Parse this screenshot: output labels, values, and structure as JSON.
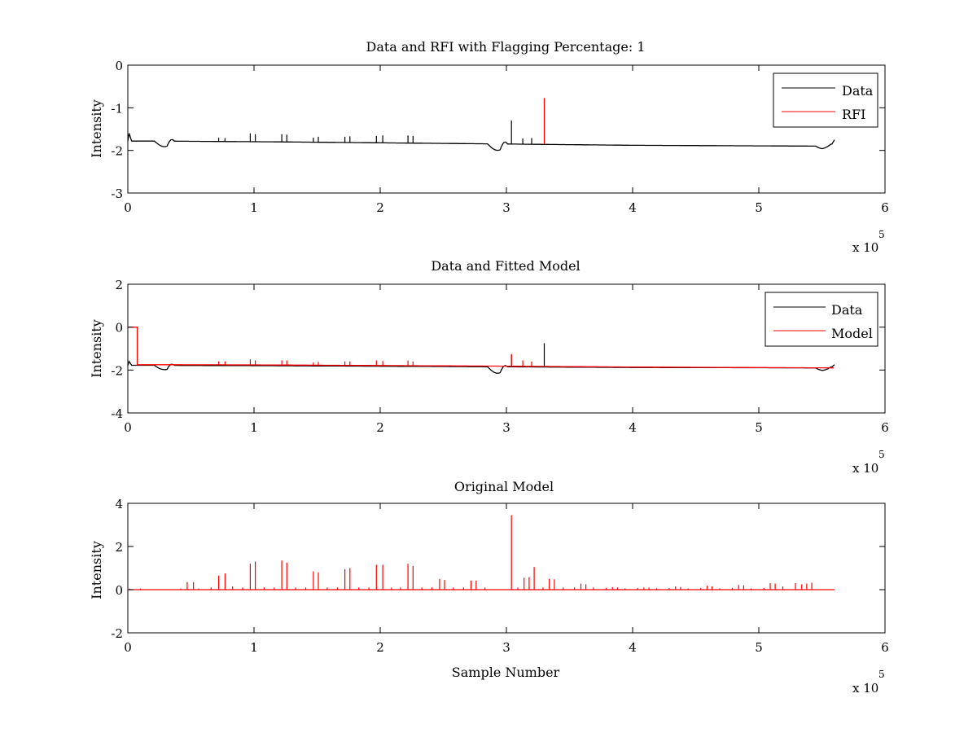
{
  "figure": {
    "background": "#ffffff",
    "colors": {
      "data": "#000000",
      "rfi": "#ff0000",
      "model": "#ff0000"
    }
  },
  "chart_data": [
    {
      "type": "line",
      "title": "Data and RFI with Flagging Percentage: 1",
      "xlabel": "",
      "ylabel": "Intensity",
      "xlim": [
        0,
        600000
      ],
      "ylim": [
        -3,
        0
      ],
      "xticks": [
        0,
        1,
        2,
        3,
        4,
        5,
        6
      ],
      "yticks": [
        -3,
        -2,
        -1,
        0
      ],
      "x_exponent_label": "x 10",
      "x_exponent": "5",
      "grid": false,
      "legend": {
        "position": "top-right",
        "entries": [
          "Data",
          "RFI"
        ]
      },
      "series": [
        {
          "name": "Data",
          "color": "#000000",
          "baseline": {
            "x": [
              0,
              1000,
              3000,
              20000,
              120000,
              300000,
              400000,
              550000,
              558000,
              560000
            ],
            "y": [
              -1.78,
              -1.6,
              -1.78,
              -1.78,
              -1.8,
              -1.85,
              -1.88,
              -1.9,
              -1.85,
              -1.75
            ]
          },
          "dips": [
            {
              "x": 29000,
              "width": 8000,
              "depth": 0.13
            },
            {
              "x": 293000,
              "width": 8000,
              "depth": 0.15
            },
            {
              "x": 551000,
              "width": 6000,
              "depth": 0.06
            }
          ],
          "bumps": [
            {
              "x": 34000,
              "width": 3000,
              "height": 0.1
            },
            {
              "x": 298000,
              "width": 3000,
              "height": 0.12
            }
          ],
          "spikes": [
            {
              "x": 97000,
              "y": -1.6
            },
            {
              "x": 101000,
              "y": -1.62
            },
            {
              "x": 122000,
              "y": -1.62
            },
            {
              "x": 126000,
              "y": -1.63
            },
            {
              "x": 147000,
              "y": -1.7
            },
            {
              "x": 151000,
              "y": -1.68
            },
            {
              "x": 172000,
              "y": -1.68
            },
            {
              "x": 176000,
              "y": -1.67
            },
            {
              "x": 197000,
              "y": -1.66
            },
            {
              "x": 202000,
              "y": -1.65
            },
            {
              "x": 222000,
              "y": -1.65
            },
            {
              "x": 226000,
              "y": -1.66
            },
            {
              "x": 72000,
              "y": -1.7
            },
            {
              "x": 77000,
              "y": -1.71
            },
            {
              "x": 304000,
              "y": -1.3
            },
            {
              "x": 313000,
              "y": -1.72
            },
            {
              "x": 320000,
              "y": -1.71
            }
          ]
        },
        {
          "name": "RFI",
          "color": "#ff0000",
          "spikes": [
            {
              "x": 330000,
              "y": -0.77
            }
          ]
        }
      ]
    },
    {
      "type": "line",
      "title": "Data and Fitted Model",
      "xlabel": "",
      "ylabel": "Intensity",
      "xlim": [
        0,
        600000
      ],
      "ylim": [
        -4,
        2
      ],
      "xticks": [
        0,
        1,
        2,
        3,
        4,
        5,
        6
      ],
      "yticks": [
        -4,
        -2,
        0,
        2
      ],
      "x_exponent_label": "x 10",
      "x_exponent": "5",
      "grid": false,
      "legend": {
        "position": "top-right",
        "entries": [
          "Data",
          "Model"
        ]
      },
      "series": [
        {
          "name": "Data",
          "color": "#000000",
          "baseline": {
            "x": [
              0,
              1000,
              3000,
              20000,
              120000,
              300000,
              400000,
              550000,
              558000,
              560000
            ],
            "y": [
              -1.78,
              -1.6,
              -1.78,
              -1.78,
              -1.8,
              -1.85,
              -1.88,
              -1.9,
              -1.85,
              -1.75
            ]
          },
          "dips": [
            {
              "x": 29000,
              "width": 8000,
              "depth": 0.2
            },
            {
              "x": 293000,
              "width": 8000,
              "depth": 0.3
            },
            {
              "x": 551000,
              "width": 6000,
              "depth": 0.12
            }
          ],
          "bumps": [
            {
              "x": 34000,
              "width": 3000,
              "height": 0.15
            },
            {
              "x": 298000,
              "width": 3000,
              "height": 0.2
            }
          ],
          "spikes": [
            {
              "x": 330000,
              "y": -0.75
            },
            {
              "x": 304000,
              "y": -1.3
            }
          ]
        },
        {
          "name": "Model",
          "color": "#ff0000",
          "step": {
            "x_end": 7500,
            "y_high": 0.0
          },
          "baseline": {
            "x": [
              7500,
              100000,
              300000,
              400000,
              560000
            ],
            "y": [
              -1.75,
              -1.76,
              -1.82,
              -1.86,
              -1.9
            ]
          },
          "spikes": [
            {
              "x": 72000,
              "y": -1.6
            },
            {
              "x": 77000,
              "y": -1.6
            },
            {
              "x": 97000,
              "y": -1.5
            },
            {
              "x": 101000,
              "y": -1.55
            },
            {
              "x": 122000,
              "y": -1.55
            },
            {
              "x": 126000,
              "y": -1.56
            },
            {
              "x": 147000,
              "y": -1.65
            },
            {
              "x": 151000,
              "y": -1.62
            },
            {
              "x": 172000,
              "y": -1.6
            },
            {
              "x": 176000,
              "y": -1.6
            },
            {
              "x": 197000,
              "y": -1.55
            },
            {
              "x": 202000,
              "y": -1.58
            },
            {
              "x": 222000,
              "y": -1.55
            },
            {
              "x": 226000,
              "y": -1.6
            },
            {
              "x": 304000,
              "y": -1.25
            },
            {
              "x": 313000,
              "y": -1.55
            },
            {
              "x": 320000,
              "y": -1.6
            }
          ]
        }
      ]
    },
    {
      "type": "line",
      "title": "Original Model",
      "xlabel": "Sample Number",
      "ylabel": "Intensity",
      "xlim": [
        0,
        600000
      ],
      "ylim": [
        -2,
        4
      ],
      "xticks": [
        0,
        1,
        2,
        3,
        4,
        5,
        6
      ],
      "yticks": [
        -2,
        0,
        2,
        4
      ],
      "x_exponent_label": "x 10",
      "x_exponent": "5",
      "grid": false,
      "series": [
        {
          "name": "",
          "color": "#ff0000",
          "baseline": {
            "x": [
              1000,
              560000
            ],
            "y": [
              0,
              0
            ]
          },
          "spikes": [
            {
              "x": 1500,
              "y": 0.05
            },
            {
              "x": 10000,
              "y": 0.05
            },
            {
              "x": 42000,
              "y": 0.05
            },
            {
              "x": 47000,
              "y": 0.35
            },
            {
              "x": 52000,
              "y": 0.35
            },
            {
              "x": 56000,
              "y": 0.05
            },
            {
              "x": 66000,
              "y": 0.1
            },
            {
              "x": 72000,
              "y": 0.65
            },
            {
              "x": 77000,
              "y": 0.75
            },
            {
              "x": 83000,
              "y": 0.15
            },
            {
              "x": 91000,
              "y": 0.1
            },
            {
              "x": 97000,
              "y": 1.2
            },
            {
              "x": 101000,
              "y": 1.3
            },
            {
              "x": 108000,
              "y": 0.1
            },
            {
              "x": 116000,
              "y": 0.1
            },
            {
              "x": 122000,
              "y": 1.35
            },
            {
              "x": 126000,
              "y": 1.25
            },
            {
              "x": 133000,
              "y": 0.1
            },
            {
              "x": 141000,
              "y": 0.1
            },
            {
              "x": 147000,
              "y": 0.85
            },
            {
              "x": 151000,
              "y": 0.8
            },
            {
              "x": 158000,
              "y": 0.1
            },
            {
              "x": 166000,
              "y": 0.1
            },
            {
              "x": 172000,
              "y": 0.95
            },
            {
              "x": 176000,
              "y": 1.0
            },
            {
              "x": 183000,
              "y": 0.1
            },
            {
              "x": 191000,
              "y": 0.1
            },
            {
              "x": 197000,
              "y": 1.15
            },
            {
              "x": 202000,
              "y": 1.15
            },
            {
              "x": 209000,
              "y": 0.1
            },
            {
              "x": 216000,
              "y": 0.1
            },
            {
              "x": 222000,
              "y": 1.2
            },
            {
              "x": 226000,
              "y": 1.1
            },
            {
              "x": 233000,
              "y": 0.1
            },
            {
              "x": 241000,
              "y": 0.1
            },
            {
              "x": 247000,
              "y": 0.5
            },
            {
              "x": 251000,
              "y": 0.45
            },
            {
              "x": 258000,
              "y": 0.1
            },
            {
              "x": 266000,
              "y": 0.1
            },
            {
              "x": 272000,
              "y": 0.42
            },
            {
              "x": 276000,
              "y": 0.42
            },
            {
              "x": 283000,
              "y": 0.1
            },
            {
              "x": 304000,
              "y": 3.45
            },
            {
              "x": 309000,
              "y": 0.1
            },
            {
              "x": 314000,
              "y": 0.55
            },
            {
              "x": 318000,
              "y": 0.58
            },
            {
              "x": 322000,
              "y": 1.05
            },
            {
              "x": 329000,
              "y": 0.1
            },
            {
              "x": 334000,
              "y": 0.5
            },
            {
              "x": 338000,
              "y": 0.48
            },
            {
              "x": 345000,
              "y": 0.1
            },
            {
              "x": 354000,
              "y": 0.1
            },
            {
              "x": 359000,
              "y": 0.28
            },
            {
              "x": 363000,
              "y": 0.25
            },
            {
              "x": 369000,
              "y": 0.1
            },
            {
              "x": 379000,
              "y": 0.08
            },
            {
              "x": 384000,
              "y": 0.12
            },
            {
              "x": 388000,
              "y": 0.1
            },
            {
              "x": 394000,
              "y": 0.06
            },
            {
              "x": 404000,
              "y": 0.08
            },
            {
              "x": 409000,
              "y": 0.1
            },
            {
              "x": 413000,
              "y": 0.1
            },
            {
              "x": 419000,
              "y": 0.06
            },
            {
              "x": 429000,
              "y": 0.08
            },
            {
              "x": 434000,
              "y": 0.15
            },
            {
              "x": 438000,
              "y": 0.12
            },
            {
              "x": 444000,
              "y": 0.06
            },
            {
              "x": 454000,
              "y": 0.08
            },
            {
              "x": 459000,
              "y": 0.18
            },
            {
              "x": 463000,
              "y": 0.15
            },
            {
              "x": 469000,
              "y": 0.06
            },
            {
              "x": 479000,
              "y": 0.08
            },
            {
              "x": 484000,
              "y": 0.22
            },
            {
              "x": 488000,
              "y": 0.2
            },
            {
              "x": 494000,
              "y": 0.06
            },
            {
              "x": 504000,
              "y": 0.08
            },
            {
              "x": 509000,
              "y": 0.3
            },
            {
              "x": 513000,
              "y": 0.28
            },
            {
              "x": 519000,
              "y": 0.15
            },
            {
              "x": 529000,
              "y": 0.3
            },
            {
              "x": 534000,
              "y": 0.25
            },
            {
              "x": 538000,
              "y": 0.28
            },
            {
              "x": 542000,
              "y": 0.32
            }
          ]
        }
      ]
    }
  ]
}
